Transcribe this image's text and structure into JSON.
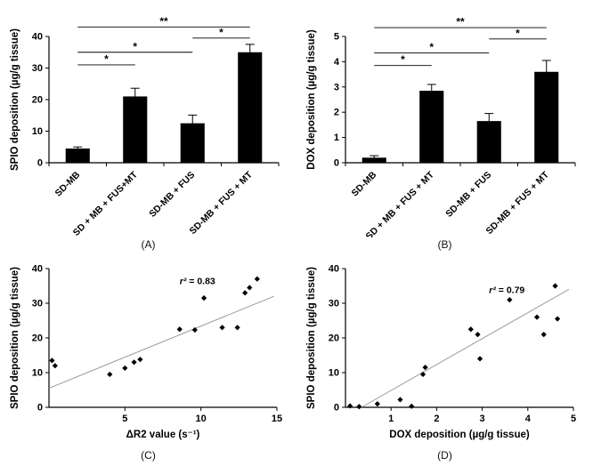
{
  "figure": {
    "background": "#ffffff"
  },
  "chart_data": [
    {
      "caption": "(A)",
      "type": "bar",
      "title": "",
      "xlabel": "",
      "ylabel": "SPIO deposition (µg/g tissue)",
      "ylim": [
        0,
        40
      ],
      "yticks": [
        0,
        10,
        20,
        30,
        40
      ],
      "categories": [
        "SD-MB",
        "SD + MB + FUS+MT",
        "SD-MB + FUS",
        "SD-MB + FUS + MT"
      ],
      "values": [
        4.5,
        21,
        12.5,
        35
      ],
      "errors": [
        0.5,
        2.6,
        2.6,
        2.5
      ],
      "bar_color": "#000000",
      "significance": [
        {
          "from": 0,
          "to": 1,
          "label": "*",
          "y": 31
        },
        {
          "from": 0,
          "to": 2,
          "label": "*",
          "y": 35
        },
        {
          "from": 2,
          "to": 3,
          "label": "*",
          "y": 39.5
        },
        {
          "from": 0,
          "to": 3,
          "label": "**",
          "y": 43
        }
      ]
    },
    {
      "caption": "(B)",
      "type": "bar",
      "title": "",
      "xlabel": "",
      "ylabel": "DOX deposition (µg/g tissue)",
      "ylim": [
        0,
        5
      ],
      "yticks": [
        0,
        1,
        2,
        3,
        4,
        5
      ],
      "categories": [
        "SD-MB",
        "SD + MB + FUS + MT",
        "SD-MB + FUS",
        "SD-MB + FUS + MT"
      ],
      "values": [
        0.2,
        2.85,
        1.65,
        3.6
      ],
      "errors": [
        0.08,
        0.25,
        0.3,
        0.45
      ],
      "bar_color": "#000000",
      "significance": [
        {
          "from": 0,
          "to": 1,
          "label": "*",
          "y": 3.85
        },
        {
          "from": 0,
          "to": 2,
          "label": "*",
          "y": 4.35
        },
        {
          "from": 2,
          "to": 3,
          "label": "*",
          "y": 4.9
        },
        {
          "from": 0,
          "to": 3,
          "label": "**",
          "y": 5.35
        }
      ]
    },
    {
      "caption": "(C)",
      "type": "scatter",
      "title": "",
      "xlabel": "ΔR2 value (s⁻¹)",
      "ylabel": "SPIO deposition (µg/g tissue)",
      "xlim": [
        0,
        15
      ],
      "ylim": [
        0,
        40
      ],
      "xticks": [
        5,
        10,
        15
      ],
      "yticks": [
        0,
        10,
        20,
        30,
        40
      ],
      "points": [
        [
          0.2,
          13.5
        ],
        [
          0.4,
          12
        ],
        [
          4.0,
          9.5
        ],
        [
          5.0,
          11.3
        ],
        [
          5.6,
          13
        ],
        [
          6.0,
          13.8
        ],
        [
          8.6,
          22.5
        ],
        [
          9.6,
          22.3
        ],
        [
          10.2,
          31.5
        ],
        [
          11.4,
          23
        ],
        [
          12.4,
          23
        ],
        [
          12.9,
          33
        ],
        [
          13.2,
          34.5
        ],
        [
          13.7,
          37
        ]
      ],
      "trend": {
        "x1": 0,
        "y1": 5.5,
        "x2": 14.8,
        "y2": 32
      },
      "annotation": {
        "text": "r² = 0.83",
        "x": 8.6,
        "y": 35.5
      },
      "marker_color": "#000000",
      "trend_color": "#999999"
    },
    {
      "caption": "(D)",
      "type": "scatter",
      "title": "",
      "xlabel": "DOX deposition (µg/g tissue)",
      "ylabel": "SPIO deposition (µg/g tissue)",
      "xlim": [
        0,
        5
      ],
      "ylim": [
        0,
        40
      ],
      "xticks": [
        1,
        2,
        3,
        4,
        5
      ],
      "yticks": [
        0,
        10,
        20,
        30,
        40
      ],
      "points": [
        [
          0.1,
          0.4
        ],
        [
          0.3,
          0.2
        ],
        [
          0.7,
          1.0
        ],
        [
          1.2,
          2.2
        ],
        [
          1.45,
          0.3
        ],
        [
          1.7,
          9.5
        ],
        [
          1.75,
          11.5
        ],
        [
          2.75,
          22.5
        ],
        [
          2.9,
          21
        ],
        [
          2.95,
          14
        ],
        [
          3.6,
          31
        ],
        [
          4.2,
          26
        ],
        [
          4.35,
          21
        ],
        [
          4.6,
          35
        ],
        [
          4.65,
          25.5
        ]
      ],
      "trend": {
        "x1": 0.35,
        "y1": 0,
        "x2": 4.9,
        "y2": 34
      },
      "annotation": {
        "text": "r² = 0.79",
        "x": 3.15,
        "y": 33
      },
      "marker_color": "#000000",
      "trend_color": "#999999"
    }
  ]
}
